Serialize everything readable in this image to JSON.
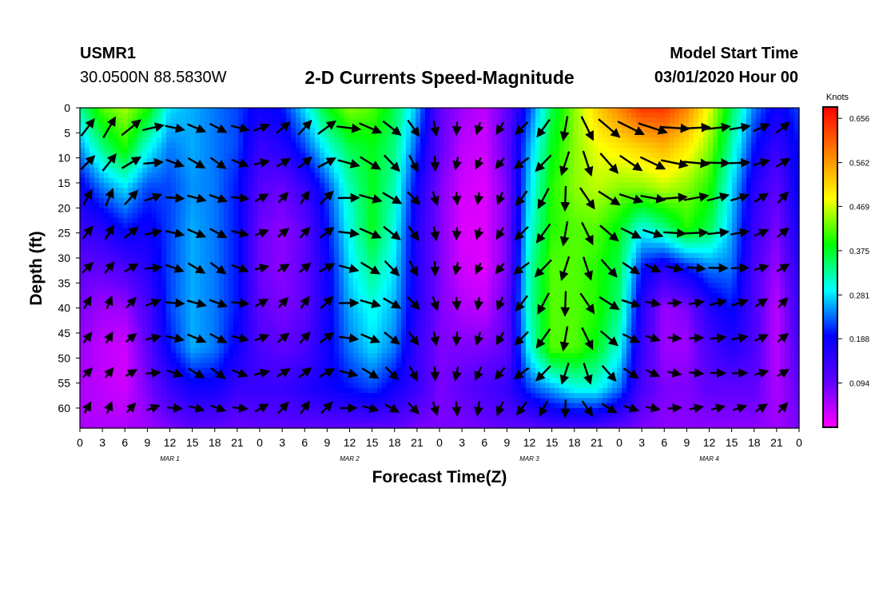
{
  "header": {
    "station": "USMR1",
    "lat_lon": "30.0500N 88.5830W",
    "title": "2-D Currents Speed-Magnitude",
    "model_start_label": "Model Start Time",
    "model_start_value": "03/01/2020 Hour 00"
  },
  "chart_data": {
    "type": "heatmap",
    "title": "2-D Currents Speed-Magnitude",
    "xlabel": "Forecast Time(Z)",
    "ylabel": "Depth (ft)",
    "x_tick_labels": [
      "0",
      "3",
      "6",
      "9",
      "12",
      "15",
      "18",
      "21",
      "0",
      "3",
      "6",
      "9",
      "12",
      "15",
      "18",
      "21",
      "0",
      "3",
      "6",
      "9",
      "12",
      "15",
      "18",
      "21",
      "0",
      "3",
      "6",
      "9",
      "12",
      "15",
      "18",
      "21",
      "0"
    ],
    "day_labels": [
      "MAR  1",
      "MAR  2",
      "MAR  3",
      "MAR  4"
    ],
    "y_tick_labels": [
      "0",
      "5",
      "10",
      "15",
      "20",
      "25",
      "30",
      "35",
      "40",
      "45",
      "50",
      "55",
      "60"
    ],
    "ylim": [
      0,
      64
    ],
    "y_inverted": true,
    "x_range_hours": [
      0,
      96
    ],
    "colorbar": {
      "unit": "Knots",
      "tick_labels": [
        "0.656",
        "0.562",
        "0.469",
        "0.375",
        "0.281",
        "0.188",
        "0.094"
      ],
      "tick_values": [
        0.656,
        0.562,
        0.469,
        0.375,
        0.281,
        0.188,
        0.094
      ],
      "range": [
        0,
        0.68
      ],
      "colors": [
        "#ff00ff",
        "#6000ff",
        "#0000ff",
        "#00ffff",
        "#00ff00",
        "#ffff00",
        "#ff8000",
        "#ff0000"
      ]
    },
    "speed_field": {
      "times_h": [
        0,
        3,
        6,
        9,
        12,
        15,
        18,
        21,
        24,
        27,
        30,
        33,
        36,
        39,
        42,
        45,
        48,
        51,
        54,
        57,
        60,
        63,
        66,
        69,
        72,
        75,
        78,
        81,
        84,
        87,
        90,
        93,
        96
      ],
      "depths_ft": [
        0,
        8,
        16,
        24,
        32,
        40,
        48,
        56,
        64
      ],
      "values_knots": [
        [
          0.33,
          0.42,
          0.45,
          0.4,
          0.28,
          0.26,
          0.24,
          0.22,
          0.18,
          0.2,
          0.28,
          0.38,
          0.44,
          0.42,
          0.36,
          0.26,
          0.1,
          0.06,
          0.04,
          0.1,
          0.22,
          0.36,
          0.44,
          0.52,
          0.58,
          0.64,
          0.64,
          0.58,
          0.48,
          0.36,
          0.24,
          0.18,
          0.22
        ],
        [
          0.25,
          0.34,
          0.4,
          0.3,
          0.24,
          0.26,
          0.24,
          0.22,
          0.14,
          0.16,
          0.22,
          0.3,
          0.36,
          0.38,
          0.34,
          0.22,
          0.1,
          0.04,
          0.03,
          0.1,
          0.26,
          0.38,
          0.44,
          0.48,
          0.5,
          0.52,
          0.54,
          0.5,
          0.44,
          0.32,
          0.2,
          0.14,
          0.2
        ],
        [
          0.18,
          0.24,
          0.28,
          0.22,
          0.22,
          0.25,
          0.24,
          0.2,
          0.11,
          0.09,
          0.14,
          0.22,
          0.32,
          0.38,
          0.32,
          0.18,
          0.08,
          0.03,
          0.02,
          0.08,
          0.28,
          0.4,
          0.44,
          0.46,
          0.44,
          0.44,
          0.46,
          0.44,
          0.4,
          0.28,
          0.16,
          0.1,
          0.2
        ],
        [
          0.14,
          0.16,
          0.2,
          0.18,
          0.22,
          0.26,
          0.24,
          0.2,
          0.09,
          0.07,
          0.1,
          0.2,
          0.3,
          0.38,
          0.3,
          0.16,
          0.08,
          0.02,
          0.02,
          0.08,
          0.3,
          0.4,
          0.42,
          0.42,
          0.38,
          0.3,
          0.34,
          0.4,
          0.36,
          0.26,
          0.14,
          0.08,
          0.18
        ],
        [
          0.1,
          0.1,
          0.12,
          0.16,
          0.22,
          0.26,
          0.24,
          0.2,
          0.09,
          0.07,
          0.1,
          0.18,
          0.28,
          0.34,
          0.28,
          0.16,
          0.08,
          0.03,
          0.02,
          0.08,
          0.32,
          0.42,
          0.42,
          0.4,
          0.36,
          0.2,
          0.16,
          0.2,
          0.24,
          0.24,
          0.12,
          0.06,
          0.16
        ],
        [
          0.08,
          0.06,
          0.06,
          0.12,
          0.22,
          0.26,
          0.24,
          0.2,
          0.1,
          0.08,
          0.1,
          0.18,
          0.26,
          0.3,
          0.26,
          0.16,
          0.08,
          0.05,
          0.04,
          0.1,
          0.32,
          0.42,
          0.42,
          0.4,
          0.34,
          0.16,
          0.06,
          0.08,
          0.16,
          0.2,
          0.12,
          0.04,
          0.14
        ],
        [
          0.06,
          0.04,
          0.03,
          0.1,
          0.2,
          0.26,
          0.24,
          0.18,
          0.12,
          0.1,
          0.12,
          0.18,
          0.24,
          0.28,
          0.24,
          0.14,
          0.08,
          0.08,
          0.08,
          0.1,
          0.3,
          0.42,
          0.42,
          0.38,
          0.3,
          0.14,
          0.06,
          0.06,
          0.12,
          0.16,
          0.12,
          0.04,
          0.12
        ],
        [
          0.05,
          0.04,
          0.03,
          0.08,
          0.14,
          0.18,
          0.18,
          0.14,
          0.14,
          0.14,
          0.16,
          0.18,
          0.2,
          0.22,
          0.18,
          0.14,
          0.08,
          0.1,
          0.12,
          0.14,
          0.22,
          0.26,
          0.3,
          0.3,
          0.24,
          0.12,
          0.08,
          0.08,
          0.1,
          0.1,
          0.1,
          0.05,
          0.1
        ],
        [
          0.05,
          0.05,
          0.05,
          0.06,
          0.08,
          0.1,
          0.1,
          0.09,
          0.1,
          0.1,
          0.1,
          0.1,
          0.1,
          0.1,
          0.1,
          0.08,
          0.08,
          0.08,
          0.09,
          0.1,
          0.1,
          0.12,
          0.12,
          0.12,
          0.1,
          0.08,
          0.07,
          0.07,
          0.07,
          0.07,
          0.07,
          0.06,
          0.08
        ]
      ]
    },
    "current_direction_deg": {
      "times_h": [
        0,
        4,
        8,
        12,
        16,
        20,
        24,
        28,
        32,
        36,
        40,
        44,
        48,
        52,
        56,
        60,
        64,
        68,
        72,
        76,
        80,
        84,
        88,
        92,
        96
      ],
      "values": [
        40,
        30,
        60,
        100,
        115,
        120,
        70,
        45,
        40,
        100,
        120,
        140,
        175,
        190,
        210,
        230,
        200,
        150,
        120,
        110,
        90,
        85,
        80,
        60,
        40
      ]
    }
  }
}
